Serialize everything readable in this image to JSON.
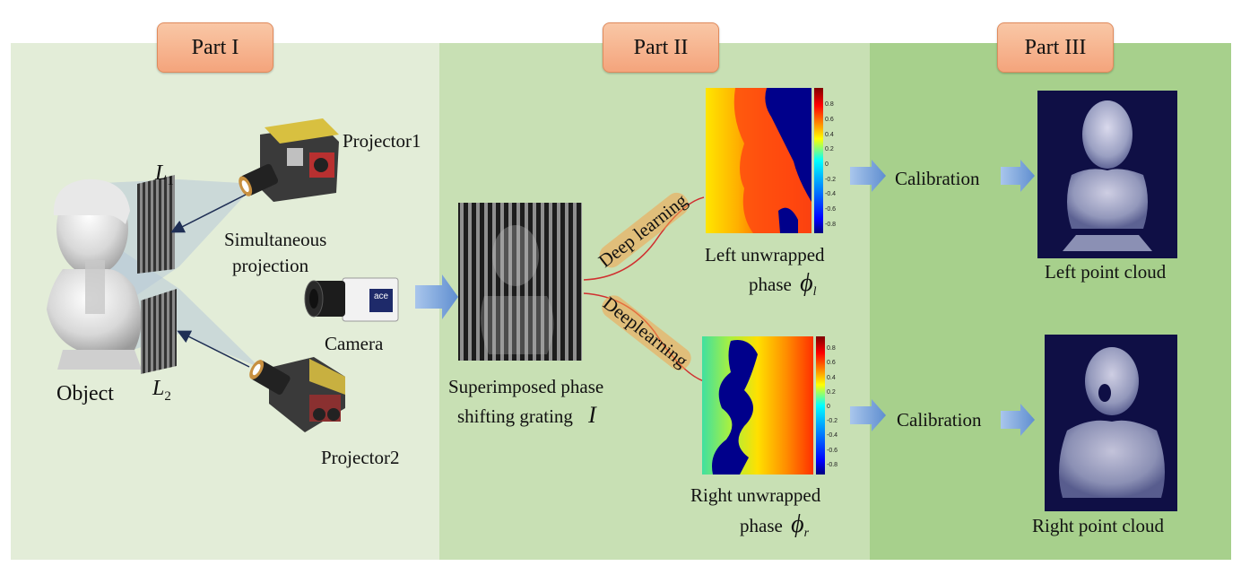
{
  "parts": {
    "part1": "Part I",
    "part2": "Part II",
    "part3": "Part III"
  },
  "labels": {
    "object": "Object",
    "l1": "L",
    "l1_sub": "1",
    "l2": "L",
    "l2_sub": "2",
    "projector1": "Projector1",
    "projector2": "Projector2",
    "simultaneous": "Simultaneous",
    "projection": "projection",
    "camera": "Camera",
    "camera_brand": "ace",
    "superimposed_line1": "Superimposed phase",
    "superimposed_line2": "shifting grating",
    "superimposed_symbol": "I",
    "deep_learning_top": "Deep learning",
    "deep_learning_bottom": "Deeplearning",
    "left_unwrapped_line1": "Left unwrapped",
    "left_unwrapped_line2": "phase",
    "phi_l": "ϕ",
    "phi_l_sub": "l",
    "right_unwrapped_line1": "Right unwrapped",
    "right_unwrapped_line2": "phase",
    "phi_r": "ϕ",
    "phi_r_sub": "r",
    "calibration_top": "Calibration",
    "calibration_bottom": "Calibration",
    "left_point_cloud": "Left point cloud",
    "right_point_cloud": "Right point cloud"
  },
  "colorbar_ticks": [
    "0.8",
    "0.6",
    "0.4",
    "0.2",
    "0",
    "-0.2",
    "-0.4",
    "-0.6",
    "-0.8"
  ],
  "colors": {
    "panel1": "#e3edd8",
    "panel2": "#c8e0b4",
    "panel3": "#a7d08c",
    "part_label": "#f4a47c",
    "arrow": "#7ea6d8",
    "phase_bg_blue": "#00008b",
    "point_cloud_bg": "#0f0f45"
  }
}
